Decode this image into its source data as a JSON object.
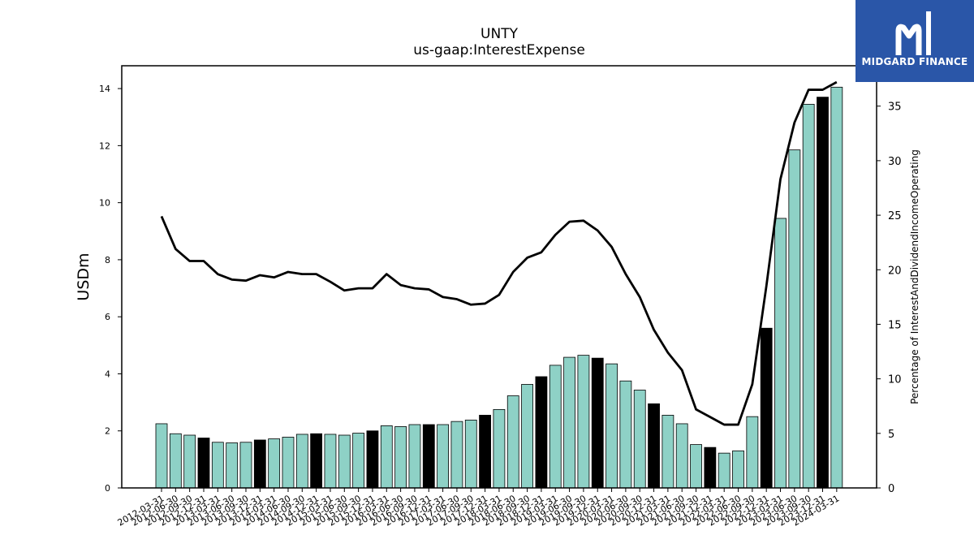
{
  "header": {
    "title": "UNTY",
    "subtitle": "us-gaap:InterestExpense"
  },
  "logo": {
    "text": "MIDGARD FINANCE",
    "color": "#2a56a8"
  },
  "chart_data": {
    "type": "bar",
    "title": "UNTY",
    "subtitle": "us-gaap:InterestExpense",
    "ylabel": "USDm",
    "y2label": "Percentage of InterestAndDividendIncomeOperating",
    "ylim": [
      0,
      14.8
    ],
    "y2lim": [
      0,
      38.7
    ],
    "yticks": [
      0,
      2,
      4,
      6,
      8,
      10,
      12,
      14
    ],
    "y2ticks": [
      0,
      5,
      10,
      15,
      20,
      25,
      30,
      35
    ],
    "bar_color": "#8ed1c6",
    "highlight_color": "#000000",
    "line_color": "#000000",
    "categories": [
      "2012-03-31",
      "2012-06-30",
      "2012-09-30",
      "2012-12-31",
      "2013-03-31",
      "2013-06-30",
      "2013-09-30",
      "2013-12-31",
      "2014-03-31",
      "2014-06-30",
      "2014-09-30",
      "2014-12-31",
      "2015-03-31",
      "2015-06-30",
      "2015-09-30",
      "2015-12-31",
      "2016-03-31",
      "2016-06-30",
      "2016-09-30",
      "2016-12-31",
      "2017-03-31",
      "2017-06-30",
      "2017-09-30",
      "2017-12-31",
      "2018-03-31",
      "2018-06-30",
      "2018-09-30",
      "2018-12-31",
      "2019-03-31",
      "2019-06-30",
      "2019-09-30",
      "2019-12-31",
      "2020-03-31",
      "2020-06-30",
      "2020-09-30",
      "2020-12-31",
      "2021-03-31",
      "2021-06-30",
      "2021-09-30",
      "2021-12-31",
      "2022-03-31",
      "2022-06-30",
      "2022-09-30",
      "2022-12-31",
      "2023-03-31",
      "2023-06-30",
      "2023-09-30",
      "2023-12-31",
      "2024-03-31"
    ],
    "series": [
      {
        "type": "bar",
        "values": [
          2.25,
          1.9,
          1.85,
          1.75,
          1.6,
          1.58,
          1.6,
          1.68,
          1.72,
          1.78,
          1.88,
          1.9,
          1.88,
          1.85,
          1.92,
          2.0,
          2.18,
          2.15,
          2.22,
          2.22,
          2.22,
          2.33,
          2.38,
          2.55,
          2.75,
          3.23,
          3.63,
          3.9,
          4.3,
          4.58,
          4.65,
          4.55,
          4.35,
          3.75,
          3.43,
          2.95,
          2.55,
          2.25,
          1.52,
          1.42,
          1.22,
          1.3,
          2.5,
          5.6,
          9.45,
          11.85,
          13.45,
          13.7,
          14.05
        ],
        "highlighted": [
          false,
          false,
          false,
          true,
          false,
          false,
          false,
          true,
          false,
          false,
          false,
          true,
          false,
          false,
          false,
          true,
          false,
          false,
          false,
          true,
          false,
          false,
          false,
          true,
          false,
          false,
          false,
          true,
          false,
          false,
          false,
          true,
          false,
          false,
          false,
          true,
          false,
          false,
          false,
          true,
          false,
          false,
          false,
          true,
          false,
          false,
          false,
          true,
          false
        ]
      },
      {
        "type": "line",
        "axis": "right",
        "values": [
          24.9,
          21.9,
          20.8,
          20.8,
          19.6,
          19.1,
          19.0,
          19.5,
          19.3,
          19.8,
          19.6,
          19.6,
          18.9,
          18.1,
          18.3,
          18.3,
          19.6,
          18.6,
          18.3,
          18.2,
          17.5,
          17.3,
          16.8,
          16.9,
          17.7,
          19.8,
          21.1,
          21.6,
          23.2,
          24.4,
          24.5,
          23.6,
          22.1,
          19.6,
          17.5,
          14.5,
          12.4,
          10.8,
          7.2,
          6.5,
          5.8,
          5.8,
          9.5,
          18.5,
          28.3,
          33.5,
          36.5,
          36.5,
          37.2
        ]
      }
    ],
    "grid": false
  }
}
